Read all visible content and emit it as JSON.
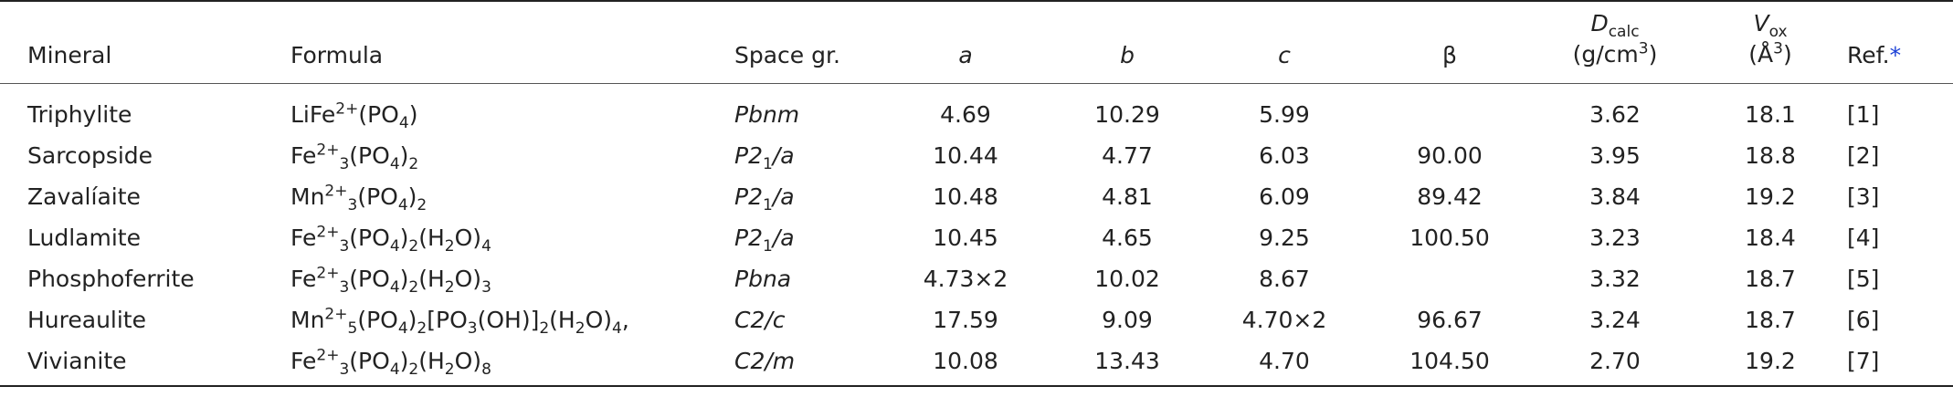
{
  "headers": {
    "mineral": "Mineral",
    "formula": "Formula",
    "space_group": "Space gr.",
    "a": "a",
    "b": "b",
    "c": "c",
    "beta": "β",
    "dcalc_symbol": "D",
    "dcalc_sub": "calc",
    "dcalc_unit_pre": "(g/cm",
    "dcalc_unit_sup": "3",
    "dcalc_unit_post": ")",
    "vox_symbol": "V",
    "vox_sub": "ox",
    "vox_unit_pre": "(Å",
    "vox_unit_sup": "3",
    "vox_unit_post": ")",
    "ref": "Ref.",
    "ref_mark": "*"
  },
  "rows": [
    {
      "mineral": "Triphylite",
      "formula": [
        [
          "t",
          "LiFe"
        ],
        [
          "sup",
          "2+"
        ],
        [
          "t",
          "(PO"
        ],
        [
          "sub",
          "4"
        ],
        [
          "t",
          ")"
        ]
      ],
      "space_group": [
        [
          "i",
          "Pbnm"
        ]
      ],
      "a": "4.69",
      "b": "10.29",
      "c": "5.99",
      "beta": "",
      "dcalc": "3.62",
      "vox": "18.1",
      "ref": "[1]"
    },
    {
      "mineral": "Sarcopside",
      "formula": [
        [
          "t",
          "Fe"
        ],
        [
          "sup",
          "2+"
        ],
        [
          "sub",
          "3"
        ],
        [
          "t",
          "(PO"
        ],
        [
          "sub",
          "4"
        ],
        [
          "t",
          ")"
        ],
        [
          "sub",
          "2"
        ]
      ],
      "space_group": [
        [
          "i",
          "P2"
        ],
        [
          "isub",
          "1"
        ],
        [
          "i",
          "/a"
        ]
      ],
      "a": "10.44",
      "b": "4.77",
      "c": "6.03",
      "beta": "90.00",
      "dcalc": "3.95",
      "vox": "18.8",
      "ref": "[2]"
    },
    {
      "mineral": "Zavalíaite",
      "formula": [
        [
          "t",
          "Mn"
        ],
        [
          "sup",
          "2+"
        ],
        [
          "sub",
          "3"
        ],
        [
          "t",
          "(PO"
        ],
        [
          "sub",
          "4"
        ],
        [
          "t",
          ")"
        ],
        [
          "sub",
          "2"
        ]
      ],
      "space_group": [
        [
          "i",
          "P2"
        ],
        [
          "isub",
          "1"
        ],
        [
          "i",
          "/a"
        ]
      ],
      "a": "10.48",
      "b": "4.81",
      "c": "6.09",
      "beta": "89.42",
      "dcalc": "3.84",
      "vox": "19.2",
      "ref": "[3]"
    },
    {
      "mineral": "Ludlamite",
      "formula": [
        [
          "t",
          "Fe"
        ],
        [
          "sup",
          "2+"
        ],
        [
          "sub",
          "3"
        ],
        [
          "t",
          "(PO"
        ],
        [
          "sub",
          "4"
        ],
        [
          "t",
          ")"
        ],
        [
          "sub",
          "2"
        ],
        [
          "t",
          "(H"
        ],
        [
          "sub",
          "2"
        ],
        [
          "t",
          "O)"
        ],
        [
          "sub",
          "4"
        ]
      ],
      "space_group": [
        [
          "i",
          "P2"
        ],
        [
          "isub",
          "1"
        ],
        [
          "i",
          "/a"
        ]
      ],
      "a": "10.45",
      "b": "4.65",
      "c": "9.25",
      "beta": "100.50",
      "dcalc": "3.23",
      "vox": "18.4",
      "ref": "[4]"
    },
    {
      "mineral": "Phosphoferrite",
      "formula": [
        [
          "t",
          "Fe"
        ],
        [
          "sup",
          "2+"
        ],
        [
          "sub",
          "3"
        ],
        [
          "t",
          "(PO"
        ],
        [
          "sub",
          "4"
        ],
        [
          "t",
          ")"
        ],
        [
          "sub",
          "2"
        ],
        [
          "t",
          "(H"
        ],
        [
          "sub",
          "2"
        ],
        [
          "t",
          "O)"
        ],
        [
          "sub",
          "3"
        ]
      ],
      "space_group": [
        [
          "i",
          "Pbna"
        ]
      ],
      "a": "4.73×2",
      "b": "10.02",
      "c": "8.67",
      "beta": "",
      "dcalc": "3.32",
      "vox": "18.7",
      "ref": "[5]"
    },
    {
      "mineral": "Hureaulite",
      "formula": [
        [
          "t",
          "Mn"
        ],
        [
          "sup",
          "2+"
        ],
        [
          "sub",
          "5"
        ],
        [
          "t",
          "(PO"
        ],
        [
          "sub",
          "4"
        ],
        [
          "t",
          ")"
        ],
        [
          "sub",
          "2"
        ],
        [
          "t",
          "[PO"
        ],
        [
          "sub",
          "3"
        ],
        [
          "t",
          "(OH)]"
        ],
        [
          "sub",
          "2"
        ],
        [
          "t",
          "(H"
        ],
        [
          "sub",
          "2"
        ],
        [
          "t",
          "O)"
        ],
        [
          "sub",
          "4"
        ],
        [
          "t",
          ","
        ]
      ],
      "space_group": [
        [
          "i",
          "C2/c"
        ]
      ],
      "a": "17.59",
      "b": "9.09",
      "c": "4.70×2",
      "beta": "96.67",
      "dcalc": "3.24",
      "vox": "18.7",
      "ref": "[6]"
    },
    {
      "mineral": "Vivianite",
      "formula": [
        [
          "t",
          "Fe"
        ],
        [
          "sup",
          "2+"
        ],
        [
          "sub",
          "3"
        ],
        [
          "t",
          "(PO"
        ],
        [
          "sub",
          "4"
        ],
        [
          "t",
          ")"
        ],
        [
          "sub",
          "2"
        ],
        [
          "t",
          "(H"
        ],
        [
          "sub",
          "2"
        ],
        [
          "t",
          "O)"
        ],
        [
          "sub",
          "8"
        ]
      ],
      "space_group": [
        [
          "i",
          "C2/m"
        ]
      ],
      "a": "10.08",
      "b": "13.43",
      "c": "4.70",
      "beta": "104.50",
      "dcalc": "2.70",
      "vox": "19.2",
      "ref": "[7]"
    }
  ]
}
